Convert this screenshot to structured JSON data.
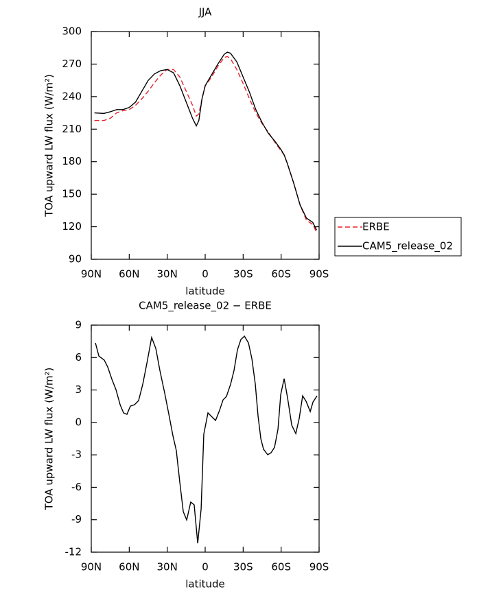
{
  "chart_data": [
    {
      "type": "line",
      "title": "JJA",
      "xlabel": "latitude",
      "ylabel": "TOA upward LW flux (W/m²)",
      "x": [
        87.5,
        80,
        75,
        70,
        65,
        60,
        55,
        50,
        45,
        40,
        35,
        30,
        25,
        20,
        15,
        10,
        7,
        5,
        2.5,
        0,
        -5,
        -10,
        -15,
        -17.5,
        -20,
        -25,
        -30,
        -35,
        -40,
        -45,
        -50,
        -55,
        -60,
        -62.5,
        -65,
        -70,
        -75,
        -80,
        -85,
        -88
      ],
      "series": [
        {
          "name": "ERBE",
          "color": "#e8212b",
          "linestyle": "dashed",
          "values": [
            218,
            218,
            220,
            225,
            227,
            228,
            232,
            238,
            245,
            253,
            260,
            265,
            265,
            258,
            245,
            232,
            222,
            224,
            238,
            250,
            258,
            268,
            276,
            277,
            275,
            265,
            252,
            238,
            225,
            215,
            207,
            198,
            190,
            186,
            178,
            160,
            140,
            126,
            122,
            115
          ]
        },
        {
          "name": "CAM5_release_02",
          "color": "#000000",
          "linestyle": "solid",
          "values": [
            225,
            224.5,
            226,
            228,
            228,
            230,
            235,
            245,
            255,
            261,
            264,
            265,
            262,
            250,
            235,
            220,
            213,
            218,
            238,
            250,
            260,
            270,
            279,
            281,
            280,
            272,
            258,
            244,
            228,
            216,
            206,
            199,
            191,
            186,
            178,
            160,
            140,
            128,
            124,
            117
          ]
        }
      ],
      "xlim": [
        90,
        -90
      ],
      "xticks": [
        {
          "value": 90,
          "label": "90N"
        },
        {
          "value": 60,
          "label": "60N"
        },
        {
          "value": 30,
          "label": "30N"
        },
        0,
        {
          "value": -30,
          "label": "30S"
        },
        {
          "value": -60,
          "label": "60S"
        },
        {
          "value": -90,
          "label": "90S"
        }
      ],
      "ylim": [
        90,
        300
      ],
      "yticks": [
        90,
        120,
        150,
        180,
        210,
        240,
        270,
        300
      ],
      "legend": "right"
    },
    {
      "type": "line",
      "title": "CAM5_release_02 − ERBE",
      "xlabel": "latitude",
      "ylabel": "TOA upward LW flux (W/m²)",
      "x": [
        86.7,
        84,
        79.7,
        77,
        73.7,
        70.5,
        67.2,
        64.5,
        61.8,
        59.1,
        55.8,
        52.6,
        49.3,
        46.1,
        42.3,
        39,
        35.8,
        32,
        28.7,
        25.5,
        22.8,
        20,
        17.3,
        14.6,
        11.4,
        8.7,
        5.9,
        3.2,
        1.1,
        -2.2,
        -4.9,
        -8.2,
        -11.4,
        -14.1,
        -16.8,
        -20.1,
        -22.8,
        -25.5,
        -28.2,
        -31,
        -34.2,
        -36.9,
        -39.6,
        -41.8,
        -44,
        -46.1,
        -49.4,
        -52.1,
        -54.8,
        -57.5,
        -59.7,
        -62.4,
        -65.1,
        -68.4,
        -71.6,
        -74.3,
        -77,
        -79.7,
        -83,
        -85.2,
        -88.4
      ],
      "color": "#000000",
      "values": [
        7.35,
        6.14,
        5.76,
        5.13,
        3.99,
        3.04,
        1.64,
        0.88,
        0.75,
        1.51,
        1.64,
        2.02,
        3.54,
        5.45,
        7.86,
        6.84,
        4.81,
        2.72,
        0.75,
        -1.22,
        -2.61,
        -5.59,
        -8.26,
        -9.02,
        -7.37,
        -7.62,
        -11.18,
        -8,
        -1.09,
        0.88,
        0.56,
        0.18,
        1.13,
        2.08,
        2.4,
        3.54,
        4.81,
        6.72,
        7.67,
        7.98,
        7.35,
        5.89,
        3.54,
        0.56,
        -1.53,
        -2.48,
        -2.99,
        -2.8,
        -2.29,
        -0.64,
        2.59,
        4.05,
        2.27,
        -0.26,
        -1.03,
        0.37,
        2.46,
        1.96,
        1.01,
        1.89,
        2.46
      ],
      "xlim": [
        90,
        -90
      ],
      "xticks": [
        {
          "value": 90,
          "label": "90N"
        },
        {
          "value": 60,
          "label": "60N"
        },
        {
          "value": 30,
          "label": "30N"
        },
        0,
        {
          "value": -30,
          "label": "30S"
        },
        {
          "value": -60,
          "label": "60S"
        },
        {
          "value": -90,
          "label": "90S"
        }
      ],
      "ylim": [
        -12,
        9
      ],
      "yticks": [
        -12,
        -9,
        -6,
        -3,
        0,
        3,
        6,
        9
      ]
    }
  ]
}
